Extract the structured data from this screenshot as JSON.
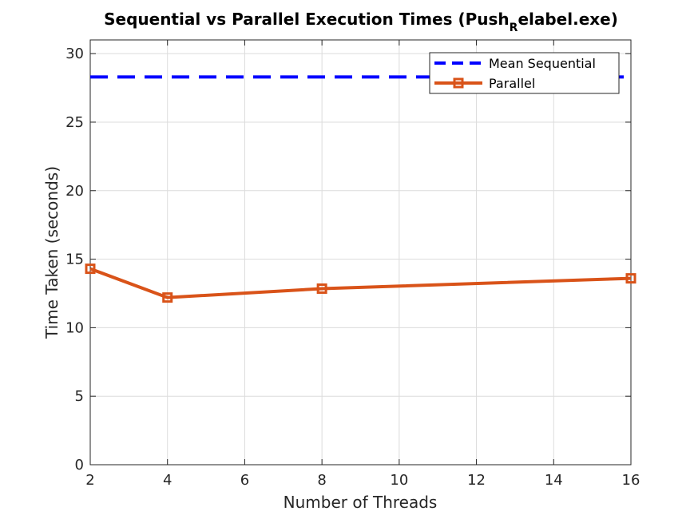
{
  "chart_data": {
    "type": "line",
    "title_main": "Sequential vs Parallel Execution Times (Push",
    "title_sub": "R",
    "title_tail": "elabel.exe)",
    "xlabel": "Number of Threads",
    "ylabel": "Time Taken (seconds)",
    "xlim": [
      2,
      16
    ],
    "ylim": [
      0,
      31
    ],
    "xticks": [
      2,
      4,
      6,
      8,
      10,
      12,
      14,
      16
    ],
    "yticks": [
      0,
      5,
      10,
      15,
      20,
      25,
      30
    ],
    "grid": true,
    "legend_position": "top-right",
    "series": [
      {
        "name": "Mean Sequential",
        "style": "dashed",
        "color": "#0000ff",
        "x": [
          2,
          16
        ],
        "values": [
          28.3,
          28.3
        ]
      },
      {
        "name": "Parallel",
        "style": "solid-square-markers",
        "color": "#d95319",
        "x": [
          2,
          4,
          8,
          16
        ],
        "values": [
          14.3,
          12.2,
          12.85,
          13.6
        ]
      }
    ]
  }
}
